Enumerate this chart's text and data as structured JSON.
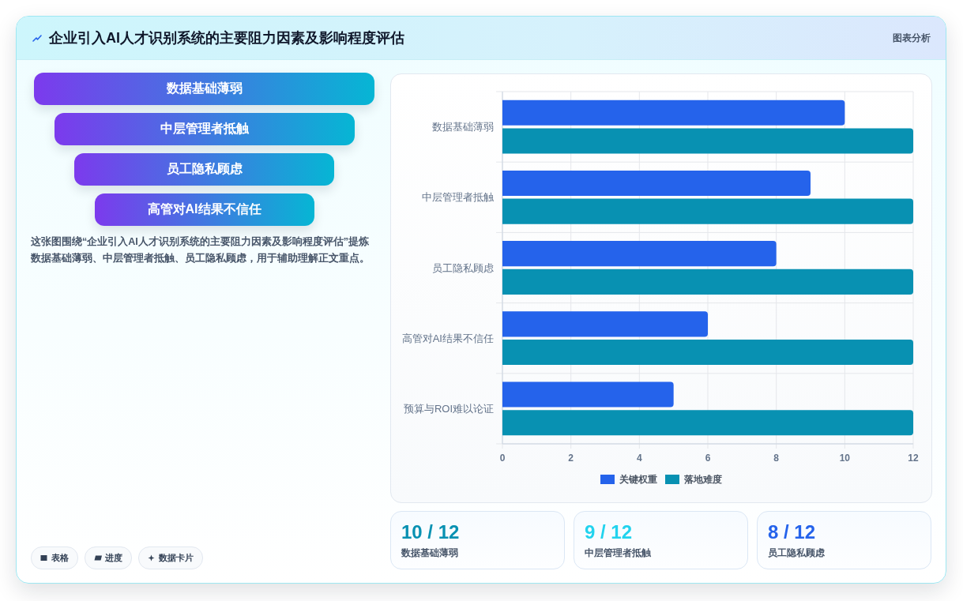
{
  "chart_data": [
    {
      "type": "other",
      "title": "企业引入AI人才识别系统的主要阻力因素及影响程度评估",
      "annotations": [
        "图表分析"
      ]
    },
    {
      "type": "other",
      "categories": [
        "数据基础薄弱",
        "中层管理者抵触",
        "员工隐私顾虑",
        "高管对AI结果不信任"
      ],
      "annotations": [
        "这张图围绕“企业引入AI人才识别系统的主要阻力因素及影响程度评估”提炼数据基础薄弱、中层管理者抵触、员工隐私顾虑，用于辅助理解正文重点。"
      ]
    },
    {
      "type": "bar",
      "orientation": "horizontal",
      "categories": [
        "数据基础薄弱",
        "中层管理者抵触",
        "员工隐私顾虑",
        "高管对AI结果不信任",
        "预算与ROI难以论证"
      ],
      "series": [
        {
          "name": "关键权重",
          "color": "#2563eb",
          "values": [
            10,
            9,
            8,
            6,
            5
          ]
        },
        {
          "name": "落地难度",
          "color": "#0891b2",
          "values": [
            12,
            12,
            12,
            12,
            12
          ]
        }
      ],
      "xlim": [
        0,
        12
      ],
      "xticks": [
        0,
        2,
        4,
        6,
        8,
        10,
        12
      ],
      "grid": true,
      "legend": "bottom"
    },
    {
      "type": "other",
      "categories": [
        "数据基础薄弱",
        "中层管理者抵触",
        "员工隐私顾虑"
      ],
      "value_labels": [
        "10 / 12",
        "9 / 12",
        "8 / 12"
      ]
    },
    {
      "type": "other",
      "annotations": [
        "表格",
        "进度",
        "数据卡片"
      ]
    }
  ]
}
